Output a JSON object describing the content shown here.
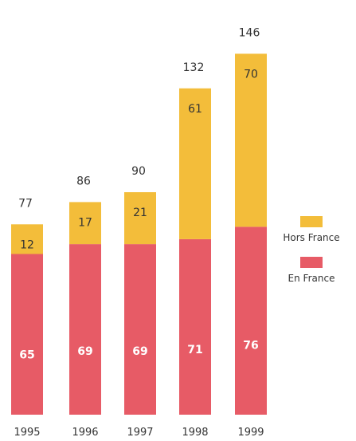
{
  "chart_data": {
    "type": "bar",
    "stacked": true,
    "categories": [
      "1995",
      "1996",
      "1997",
      "1998",
      "1999"
    ],
    "series": [
      {
        "name": "En France",
        "values": [
          65,
          69,
          69,
          71,
          76
        ]
      },
      {
        "name": "Hors France",
        "values": [
          12,
          17,
          21,
          61,
          70
        ]
      }
    ],
    "totals": [
      77,
      86,
      90,
      132,
      146
    ],
    "title": "",
    "xlabel": "",
    "ylabel": "",
    "legend_position": "right",
    "grid": false,
    "colors": {
      "En France": "#e75b66",
      "Hors France": "#f3bd3a"
    }
  }
}
